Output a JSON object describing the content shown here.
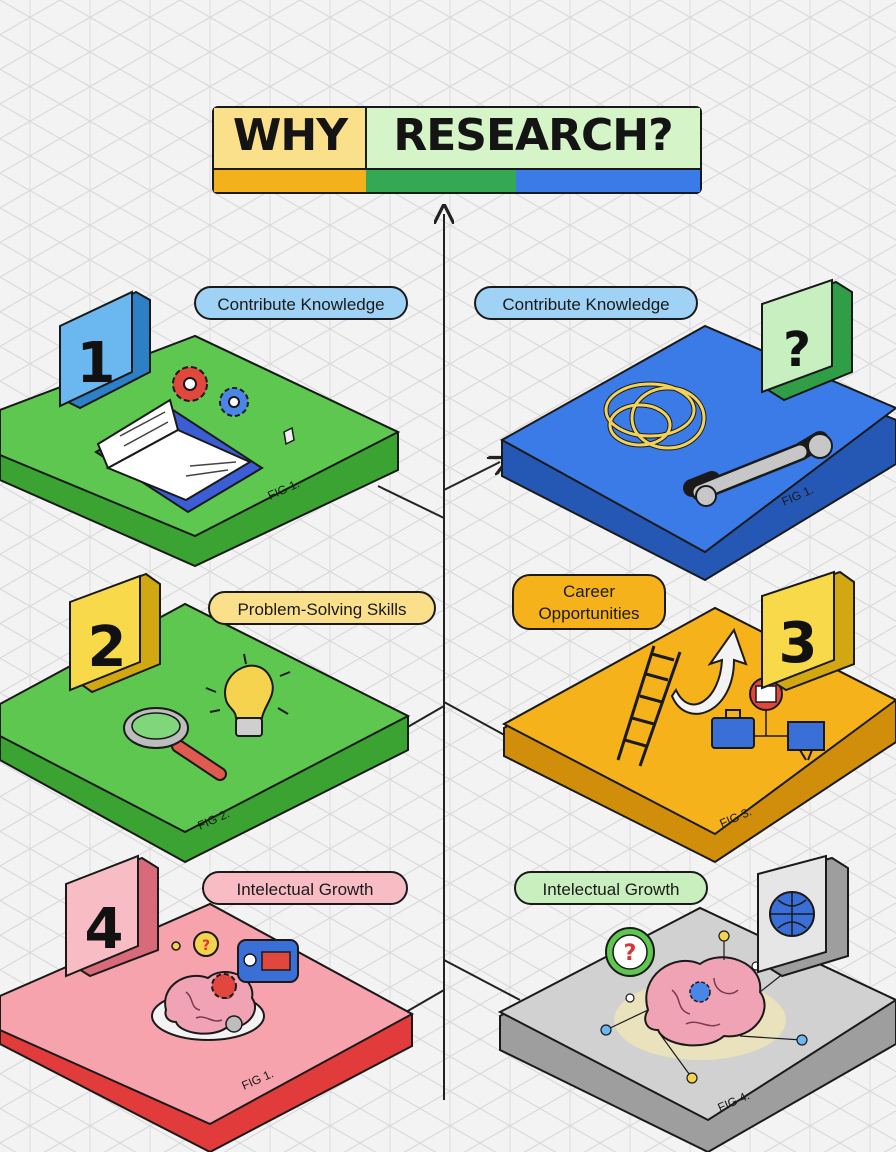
{
  "title": {
    "word1": "WHY",
    "word2": "RESEARCH?"
  },
  "colors": {
    "background": "#f3f3f3",
    "grid": "#d6d6d6",
    "green": "#5dc74f",
    "blue": "#3b7be8",
    "yellow": "#f6b21b",
    "pink": "#f7a3ad",
    "gray": "#d1d1d1",
    "title_yellow": "#fbe08c",
    "title_green": "#d5f5c8"
  },
  "cards": [
    {
      "id": "card1",
      "number": "1",
      "label": "Contribute Knowledge",
      "fig": "FIG 1.",
      "color": "#5dc74f",
      "illustration": "book-gears"
    },
    {
      "id": "card2",
      "number": "?",
      "label": "Contribute Knowledge",
      "fig": "FIG 1.",
      "color": "#3b7be8",
      "illustration": "tangle-wrench"
    },
    {
      "id": "card3",
      "number": "2",
      "label": "Problem-Solving Skills",
      "fig": "FIG 2.",
      "color": "#5dc74f",
      "illustration": "magnifier-bulb"
    },
    {
      "id": "card4",
      "number": "3",
      "label_line1": "Career",
      "label_line2": "Opportunities",
      "fig": "FIG 3.",
      "color": "#f6b21b",
      "illustration": "ladder-arrow-briefcase"
    },
    {
      "id": "card5",
      "number": "4",
      "label": "Intelectual Growth",
      "fig": "FIG 1.",
      "color": "#f7a3ad",
      "illustration": "brain-question"
    },
    {
      "id": "card6",
      "number": "",
      "label": "Intelectual Growth",
      "fig": "FIG 4.",
      "color": "#d1d1d1",
      "illustration": "brain-network-globe"
    }
  ]
}
